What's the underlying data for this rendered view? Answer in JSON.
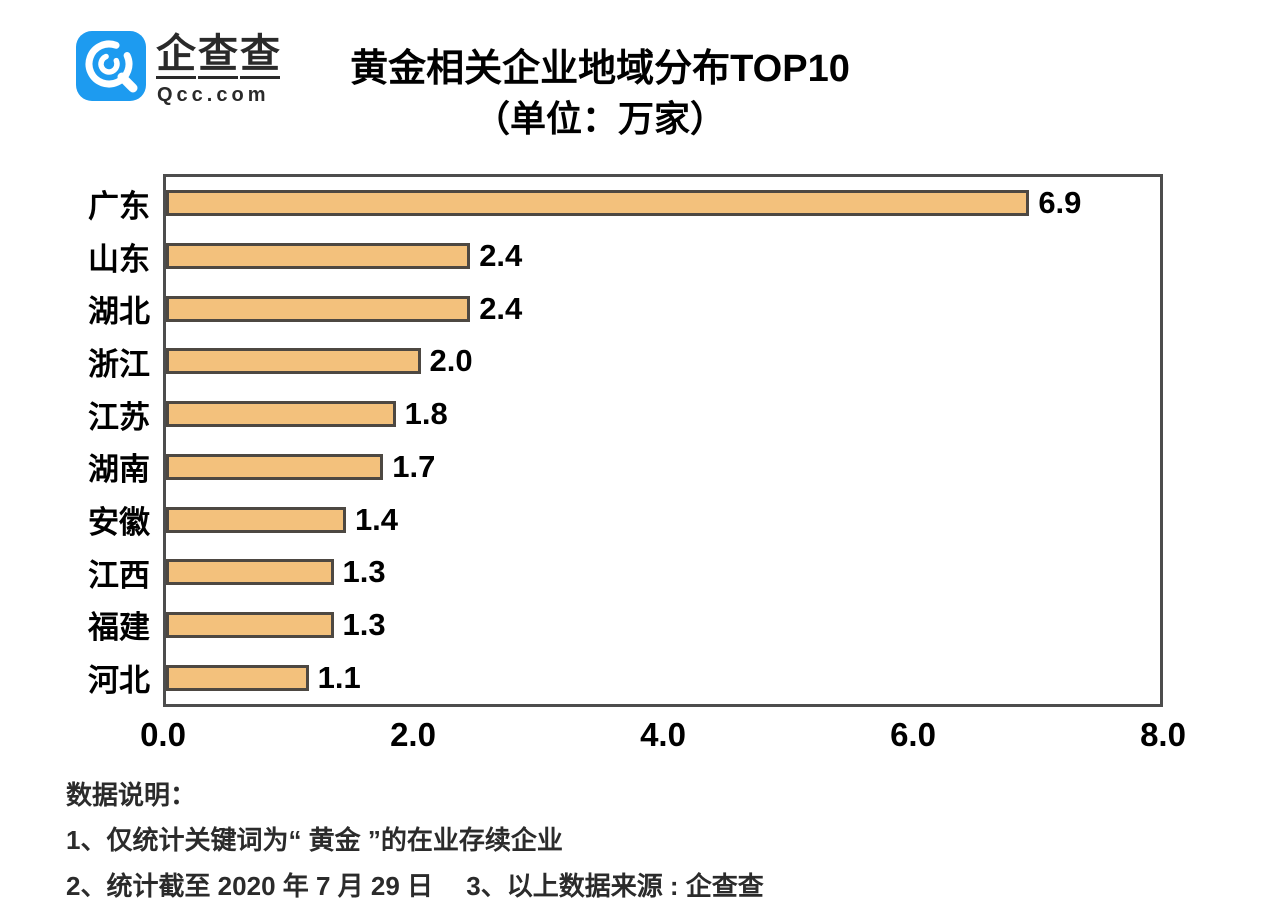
{
  "logo": {
    "name": "企查查",
    "domain": "Qcc.com",
    "brand_color": "#1d9bf0"
  },
  "title": {
    "line1": "黄金相关企业地域分布TOP10",
    "line2": "（单位：万家）"
  },
  "chart_data": {
    "type": "bar",
    "orientation": "horizontal",
    "title": "黄金相关企业地域分布TOP10",
    "subtitle": "（单位：万家）",
    "unit": "万家",
    "categories": [
      "广东",
      "山东",
      "湖北",
      "浙江",
      "江苏",
      "湖南",
      "安徽",
      "江西",
      "福建",
      "河北"
    ],
    "values": [
      6.9,
      2.4,
      2.4,
      2.0,
      1.8,
      1.7,
      1.4,
      1.3,
      1.3,
      1.1
    ],
    "value_labels": [
      "6.9",
      "2.4",
      "2.4",
      "2.0",
      "1.8",
      "1.7",
      "1.4",
      "1.3",
      "1.3",
      "1.1"
    ],
    "xlabel": "",
    "ylabel": "",
    "xlim": [
      0,
      8
    ],
    "x_ticks": [
      "0.0",
      "2.0",
      "4.0",
      "6.0",
      "8.0"
    ],
    "grid": false,
    "legend": false,
    "bar_color": "#f3c17c",
    "bar_border_color": "#4d4842",
    "plot_border_color": "#4d4d4d"
  },
  "notes": {
    "heading": "数据说明：",
    "line1": "1、仅统计关键词为“ 黄金 ”的在业存续企业",
    "line2": "2、统计截至 2020 年 7 月 29 日　 3、以上数据来源 : 企查查"
  }
}
